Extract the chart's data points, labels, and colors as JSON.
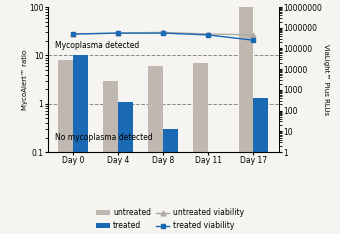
{
  "categories": [
    "Day 0",
    "Day 4",
    "Day 8",
    "Day 11",
    "Day 17"
  ],
  "untreated_myco": [
    8.0,
    3.0,
    6.0,
    7.0,
    500.0
  ],
  "treated_myco": [
    10.0,
    1.1,
    0.3,
    0.1,
    1.3
  ],
  "untreated_viability": [
    500000,
    550000,
    600000,
    500000,
    450000
  ],
  "treated_viability": [
    500000,
    550000,
    550000,
    450000,
    250000
  ],
  "bar_untreated_color": "#c0b8b0",
  "bar_treated_color": "#1a69b5",
  "line_untreated_color": "#b0aaa5",
  "line_treated_color": "#1a69b5",
  "ylabel_left": "MycoAlert™ ratio",
  "ylabel_right": "ViaLight™ Plus RLUs",
  "ylim_left": [
    0.1,
    100
  ],
  "ylim_right": [
    1,
    10000000
  ],
  "dashed_line_upper": 10,
  "dashed_line_lower": 1,
  "annotation_above": "Mycoplasma detected",
  "annotation_below": "No mycoplasma detected",
  "legend_items": [
    "untreated",
    "treated",
    "untreated viability",
    "treated viability"
  ],
  "background_color": "#f5f5f0"
}
